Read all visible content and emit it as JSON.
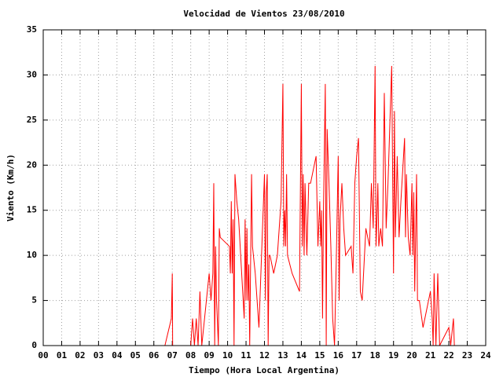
{
  "chart_data": {
    "type": "line",
    "title": "Velocidad de Vientos 23/08/2010",
    "xlabel": "Tiempo (Hora Local Argentina)",
    "ylabel": "Viento (Km/h)",
    "series": [
      {
        "color": "#ff0000",
        "x": [
          0,
          6.6,
          6.95,
          7.0,
          7.02,
          8.0,
          8.1,
          8.2,
          8.3,
          8.4,
          8.5,
          8.6,
          9.0,
          9.1,
          9.2,
          9.25,
          9.3,
          9.35,
          9.4,
          9.5,
          9.55,
          9.6,
          10.1,
          10.15,
          10.2,
          10.25,
          10.3,
          10.35,
          10.4,
          10.5,
          10.6,
          10.9,
          10.95,
          11.0,
          11.05,
          11.1,
          11.15,
          11.2,
          11.3,
          11.35,
          11.4,
          11.5,
          11.6,
          11.7,
          12.0,
          12.05,
          12.1,
          12.15,
          12.2,
          12.25,
          12.3,
          12.4,
          12.5,
          12.7,
          12.9,
          13.0,
          13.05,
          13.1,
          13.15,
          13.2,
          13.25,
          13.5,
          13.9,
          14.0,
          14.05,
          14.1,
          14.15,
          14.2,
          14.3,
          14.4,
          14.5,
          14.8,
          14.9,
          15.0,
          15.05,
          15.1,
          15.15,
          15.2,
          15.3,
          15.35,
          15.4,
          15.5,
          15.6,
          15.7,
          15.8,
          15.9,
          16.0,
          16.05,
          16.1,
          16.2,
          16.3,
          16.4,
          16.7,
          16.8,
          16.9,
          17.0,
          17.1,
          17.2,
          17.3,
          17.5,
          17.7,
          17.8,
          17.9,
          18.0,
          18.05,
          18.1,
          18.15,
          18.2,
          18.3,
          18.4,
          18.5,
          18.6,
          18.7,
          18.9,
          19.0,
          19.05,
          19.1,
          19.2,
          19.3,
          19.4,
          19.6,
          19.65,
          19.7,
          19.8,
          19.9,
          20.0,
          20.05,
          20.1,
          20.15,
          20.25,
          20.3,
          20.4,
          20.6,
          21.0,
          21.1,
          21.15,
          21.2,
          21.3,
          21.4,
          21.5,
          22.0,
          22.1,
          22.25,
          22.3
        ],
        "values": [
          0,
          0,
          3,
          8,
          0,
          0,
          3,
          0,
          3,
          0,
          6,
          0,
          8,
          5,
          8,
          18,
          0,
          11,
          5,
          0,
          13,
          12,
          11,
          8,
          16,
          8,
          14,
          0,
          19,
          16,
          14,
          3,
          14,
          5,
          13,
          5,
          9,
          0,
          19,
          11,
          10,
          8,
          5,
          2,
          19,
          5,
          17,
          19,
          0,
          10,
          10,
          9,
          8,
          10,
          16,
          29,
          11,
          15,
          11,
          19,
          10,
          8,
          6,
          29,
          11,
          19,
          10,
          18,
          10,
          18,
          18,
          21,
          11,
          16,
          11,
          15,
          3,
          15,
          29,
          0,
          24,
          18,
          11,
          3,
          0,
          10,
          21,
          5,
          14,
          18,
          13,
          10,
          11,
          8,
          18,
          21,
          23,
          6,
          5,
          13,
          11,
          18,
          13,
          31,
          11,
          14,
          18,
          11,
          13,
          11,
          28,
          13,
          18,
          31,
          8,
          26,
          12,
          21,
          12,
          16,
          23,
          12,
          19,
          12,
          10,
          18,
          10,
          17,
          6,
          19,
          5,
          5,
          2,
          6,
          3,
          0,
          8,
          0,
          8,
          0,
          2,
          0,
          3,
          0
        ]
      }
    ],
    "xlim": [
      0,
      24
    ],
    "xticks": [
      {
        "value": 0,
        "label": "00"
      },
      {
        "value": 1,
        "label": "01"
      },
      {
        "value": 2,
        "label": "02"
      },
      {
        "value": 3,
        "label": "03"
      },
      {
        "value": 4,
        "label": "04"
      },
      {
        "value": 5,
        "label": "05"
      },
      {
        "value": 6,
        "label": "06"
      },
      {
        "value": 7,
        "label": "07"
      },
      {
        "value": 8,
        "label": "08"
      },
      {
        "value": 9,
        "label": "09"
      },
      10,
      11,
      12,
      13,
      14,
      15,
      16,
      17,
      18,
      19,
      20,
      21,
      22,
      23,
      24
    ],
    "ylim": [
      0,
      35
    ],
    "yticks": [
      0,
      5,
      10,
      15,
      20,
      25,
      30,
      35
    ],
    "grid": true
  }
}
